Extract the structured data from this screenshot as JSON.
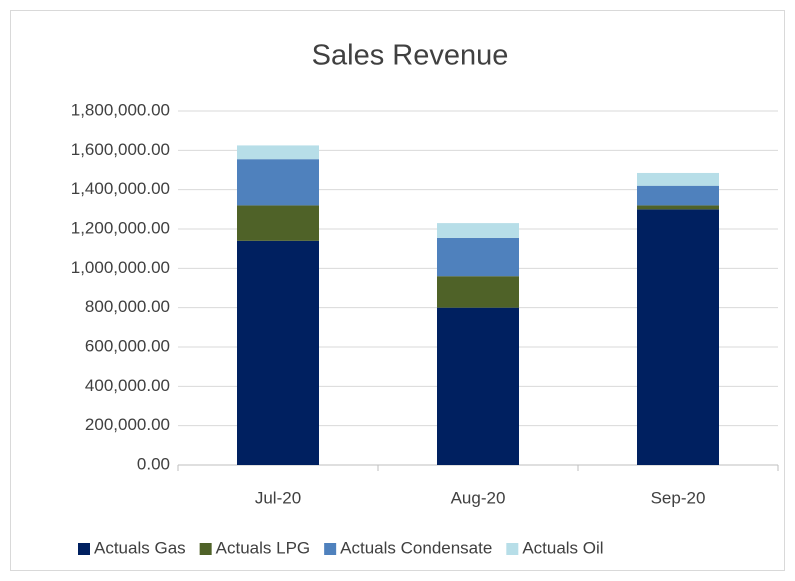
{
  "chart_data": {
    "type": "stacked_bar",
    "title": "Sales Revenue",
    "categories": [
      "Jul-20",
      "Aug-20",
      "Sep-20"
    ],
    "series": [
      {
        "name": "Actuals Gas",
        "color": "#002060",
        "values": [
          1140000,
          800000,
          1300000
        ]
      },
      {
        "name": "Actuals LPG",
        "color": "#4f6228",
        "values": [
          180000,
          160000,
          20000
        ]
      },
      {
        "name": "Actuals Condensate",
        "color": "#4f81bd",
        "values": [
          235000,
          195000,
          100000
        ]
      },
      {
        "name": "Actuals Oil",
        "color": "#b7dee8",
        "values": [
          70000,
          75000,
          65000
        ]
      }
    ],
    "ylim": [
      0,
      1800000
    ],
    "yticks": [
      {
        "value": 0,
        "label": "0.00"
      },
      {
        "value": 200000,
        "label": "200,000.00"
      },
      {
        "value": 400000,
        "label": "400,000.00"
      },
      {
        "value": 600000,
        "label": "600,000.00"
      },
      {
        "value": 800000,
        "label": "800,000.00"
      },
      {
        "value": 1000000,
        "label": "1,000,000.00"
      },
      {
        "value": 1200000,
        "label": "1,200,000.00"
      },
      {
        "value": 1400000,
        "label": "1,400,000.00"
      },
      {
        "value": 1600000,
        "label": "1,600,000.00"
      },
      {
        "value": 1800000,
        "label": "1,800,000.00"
      }
    ],
    "grid": true,
    "legend": "bottom"
  }
}
